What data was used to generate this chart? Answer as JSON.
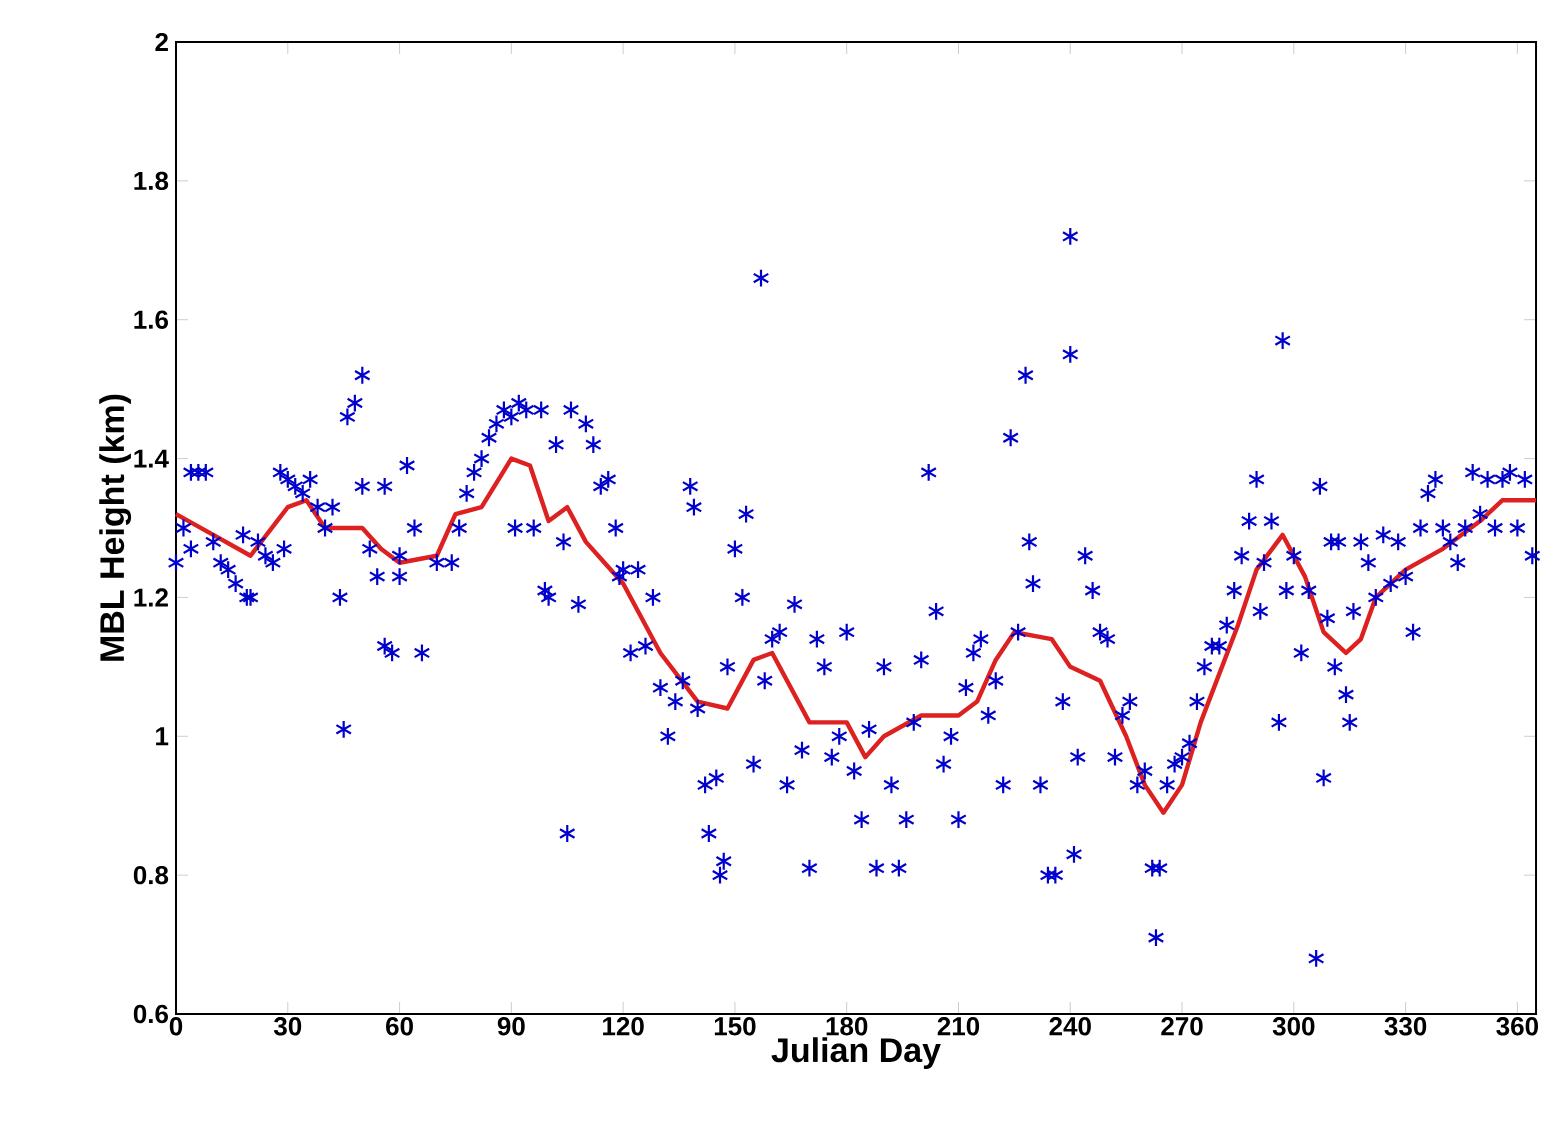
{
  "chart_data": {
    "type": "scatter",
    "xlabel": "Julian Day",
    "ylabel": "MBL Height (km)",
    "xlim": [
      0,
      365
    ],
    "ylim": [
      0.6,
      2
    ],
    "xticks": [
      0,
      30,
      60,
      90,
      120,
      150,
      180,
      210,
      240,
      270,
      300,
      330,
      360
    ],
    "yticks": [
      0.6,
      0.8,
      1,
      1.2,
      1.4,
      1.6,
      1.8,
      2
    ],
    "grid": false,
    "marker": "cross",
    "series": [
      {
        "color": "#0000cc",
        "x": [
          0,
          2,
          4,
          6,
          8,
          4,
          10,
          12,
          14,
          16,
          18,
          19,
          20,
          22,
          24,
          26,
          28,
          30,
          29,
          32,
          34,
          36,
          38,
          40,
          42,
          44,
          45,
          46,
          48,
          50,
          50,
          52,
          54,
          56,
          56,
          58,
          60,
          60,
          62,
          64,
          66,
          70,
          74,
          76,
          78,
          80,
          82,
          84,
          86,
          88,
          90,
          91,
          92,
          94,
          96,
          98,
          99,
          100,
          102,
          104,
          105,
          106,
          108,
          110,
          112,
          114,
          116,
          118,
          119,
          120,
          122,
          124,
          126,
          128,
          130,
          132,
          134,
          136,
          138,
          139,
          140,
          142,
          143,
          145,
          146,
          147,
          148,
          150,
          152,
          153,
          155,
          157,
          158,
          160,
          162,
          164,
          166,
          168,
          170,
          172,
          174,
          176,
          178,
          180,
          182,
          184,
          186,
          188,
          190,
          192,
          194,
          196,
          198,
          200,
          202,
          204,
          206,
          208,
          210,
          212,
          214,
          216,
          218,
          220,
          222,
          224,
          226,
          228,
          229,
          230,
          232,
          234,
          236,
          238,
          240,
          240,
          241,
          242,
          244,
          246,
          248,
          250,
          252,
          254,
          256,
          258,
          260,
          262,
          263,
          264,
          266,
          268,
          270,
          272,
          274,
          276,
          278,
          280,
          282,
          284,
          286,
          288,
          290,
          291,
          292,
          294,
          296,
          297,
          298,
          300,
          302,
          304,
          306,
          307,
          308,
          309,
          310,
          311,
          312,
          314,
          315,
          316,
          318,
          320,
          322,
          324,
          326,
          328,
          330,
          332,
          334,
          336,
          338,
          340,
          342,
          344,
          346,
          348,
          350,
          352,
          354,
          356,
          358,
          360,
          362,
          364
        ],
        "values": [
          1.25,
          1.3,
          1.38,
          1.38,
          1.38,
          1.27,
          1.28,
          1.25,
          1.24,
          1.22,
          1.29,
          1.2,
          1.2,
          1.28,
          1.26,
          1.25,
          1.38,
          1.37,
          1.27,
          1.36,
          1.35,
          1.37,
          1.33,
          1.3,
          1.33,
          1.2,
          1.01,
          1.46,
          1.48,
          1.52,
          1.36,
          1.27,
          1.23,
          1.36,
          1.13,
          1.12,
          1.26,
          1.23,
          1.39,
          1.3,
          1.12,
          1.25,
          1.25,
          1.3,
          1.35,
          1.38,
          1.4,
          1.43,
          1.45,
          1.47,
          1.46,
          1.3,
          1.48,
          1.47,
          1.3,
          1.47,
          1.21,
          1.2,
          1.42,
          1.28,
          0.86,
          1.47,
          1.19,
          1.45,
          1.42,
          1.36,
          1.37,
          1.3,
          1.23,
          1.24,
          1.12,
          1.24,
          1.13,
          1.2,
          1.07,
          1.0,
          1.05,
          1.08,
          1.36,
          1.33,
          1.04,
          0.93,
          0.86,
          0.94,
          0.8,
          0.82,
          1.1,
          1.27,
          1.2,
          1.32,
          0.96,
          1.66,
          1.08,
          1.14,
          1.15,
          0.93,
          1.19,
          0.98,
          0.81,
          1.14,
          1.1,
          0.97,
          1.0,
          1.15,
          0.95,
          0.88,
          1.01,
          0.81,
          1.1,
          0.93,
          0.81,
          0.88,
          1.02,
          1.11,
          1.38,
          1.18,
          0.96,
          1.0,
          0.88,
          1.07,
          1.12,
          1.14,
          1.03,
          1.08,
          0.93,
          1.43,
          1.15,
          1.52,
          1.28,
          1.22,
          0.93,
          0.8,
          0.8,
          1.05,
          1.72,
          1.55,
          0.83,
          0.97,
          1.26,
          1.21,
          1.15,
          1.14,
          0.97,
          1.03,
          1.05,
          0.93,
          0.95,
          0.81,
          0.71,
          0.81,
          0.93,
          0.96,
          0.97,
          0.99,
          1.05,
          1.1,
          1.13,
          1.13,
          1.16,
          1.21,
          1.26,
          1.31,
          1.37,
          1.18,
          1.25,
          1.31,
          1.02,
          1.57,
          1.21,
          1.26,
          1.12,
          1.21,
          0.68,
          1.36,
          0.94,
          1.17,
          1.28,
          1.1,
          1.28,
          1.06,
          1.02,
          1.18,
          1.28,
          1.25,
          1.2,
          1.29,
          1.22,
          1.28,
          1.23,
          1.15,
          1.3,
          1.35,
          1.37,
          1.3,
          1.28,
          1.25,
          1.3,
          1.38,
          1.32,
          1.37,
          1.3,
          1.37,
          1.38,
          1.3,
          1.37,
          1.26
        ]
      },
      {
        "type": "line",
        "color": "#dd2020",
        "marker": "none",
        "line_style": "solid",
        "x": [
          0,
          10,
          20,
          30,
          35,
          40,
          50,
          55,
          60,
          70,
          75,
          82,
          90,
          95,
          100,
          105,
          110,
          115,
          120,
          130,
          140,
          148,
          155,
          160,
          165,
          170,
          180,
          185,
          190,
          200,
          210,
          215,
          220,
          225,
          235,
          240,
          248,
          255,
          260,
          265,
          270,
          275,
          285,
          290,
          297,
          303,
          308,
          314,
          318,
          322,
          330,
          340,
          350,
          356,
          365
        ],
        "values": [
          1.32,
          1.29,
          1.26,
          1.33,
          1.34,
          1.3,
          1.3,
          1.27,
          1.25,
          1.26,
          1.32,
          1.33,
          1.4,
          1.39,
          1.31,
          1.33,
          1.28,
          1.25,
          1.22,
          1.12,
          1.05,
          1.04,
          1.11,
          1.12,
          1.07,
          1.02,
          1.02,
          0.97,
          1.0,
          1.03,
          1.03,
          1.05,
          1.11,
          1.15,
          1.14,
          1.1,
          1.08,
          1.0,
          0.93,
          0.89,
          0.93,
          1.02,
          1.16,
          1.24,
          1.29,
          1.23,
          1.15,
          1.12,
          1.14,
          1.2,
          1.24,
          1.27,
          1.31,
          1.34,
          1.34
        ]
      }
    ]
  }
}
